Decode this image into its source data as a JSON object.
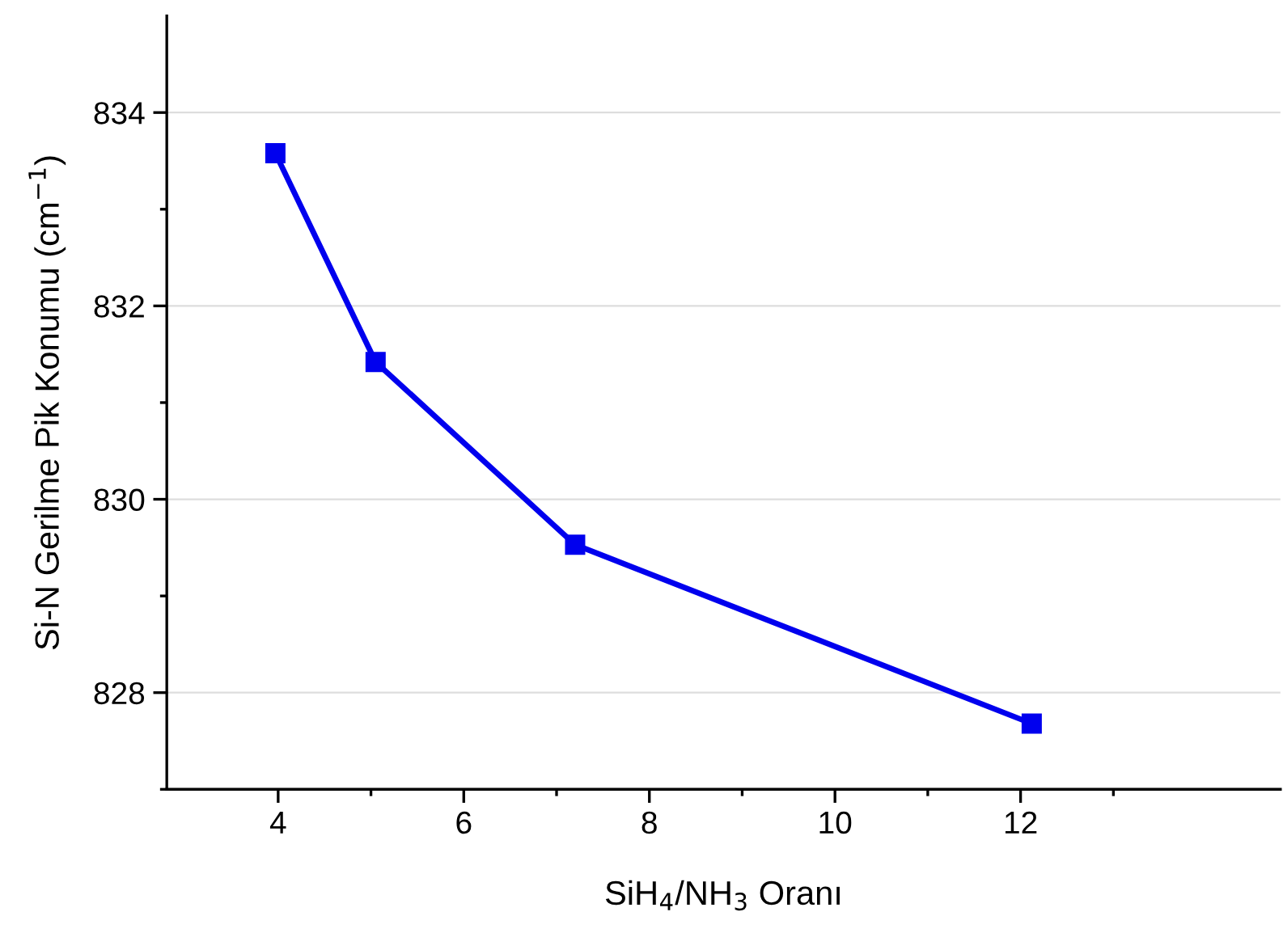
{
  "chart_data": {
    "type": "line",
    "xlabel": "SiH$_{4}$/NH$_{3}$ Oranı",
    "ylabel": "Si-N Gerilme Pik Konumu (cm$^{−1}$)",
    "x": [
      3.97,
      5.05,
      7.2,
      12.12
    ],
    "series": [
      {
        "color": "#0000ee",
        "values": [
          833.58,
          831.42,
          829.53,
          827.68
        ]
      }
    ],
    "xlim": [
      2.8,
      14.8
    ],
    "xticks": [
      4,
      6,
      8,
      10,
      12
    ],
    "ylim": [
      827,
      835
    ],
    "yticks": [
      828,
      830,
      832,
      834
    ],
    "grid": "y",
    "marker": "square",
    "line_style": "solid",
    "legend": false
  }
}
